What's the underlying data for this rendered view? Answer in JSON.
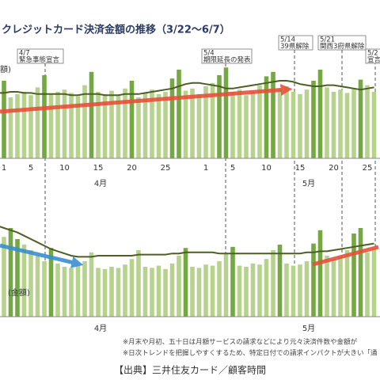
{
  "chart_data": [
    {
      "type": "bar",
      "title": "クレジットカード決済金額の推移（3/22～6/7）",
      "unit_label": "額)",
      "categories": [
        null,
        "1",
        null,
        null,
        null,
        "5",
        null,
        null,
        null,
        null,
        "10",
        null,
        null,
        null,
        null,
        "15",
        null,
        null,
        null,
        null,
        "20",
        null,
        null,
        null,
        null,
        "25",
        null,
        null,
        null,
        null,
        null,
        "1",
        null,
        null,
        null,
        "5",
        null,
        null,
        null,
        null,
        "10",
        null,
        null,
        null,
        null,
        "15",
        null,
        null,
        null,
        null,
        "20",
        null,
        null,
        null,
        null,
        "25",
        null
      ],
      "month_labels": [
        "4月",
        "5月"
      ],
      "values": [
        62,
        70,
        55,
        58,
        60,
        57,
        64,
        75,
        58,
        60,
        62,
        59,
        56,
        66,
        78,
        60,
        58,
        61,
        57,
        63,
        70,
        55,
        59,
        62,
        58,
        60,
        72,
        80,
        61,
        63,
        58,
        65,
        68,
        75,
        82,
        60,
        62,
        57,
        60,
        66,
        74,
        78,
        63,
        65,
        60,
        58,
        62,
        70,
        80,
        64,
        60,
        62,
        59,
        63,
        71,
        66,
        60
      ],
      "colors": [
        "#b7d28d",
        "#74a942",
        "#b7d28d",
        "#b7d28d",
        "#b7d28d",
        "#b7d28d",
        "#b7d28d",
        "#74a942",
        "#b7d28d",
        "#b7d28d",
        "#b7d28d",
        "#b7d28d",
        "#b7d28d",
        "#b7d28d",
        "#74a942",
        "#b7d28d",
        "#b7d28d",
        "#b7d28d",
        "#b7d28d",
        "#b7d28d",
        "#74a942",
        "#b7d28d",
        "#b7d28d",
        "#b7d28d",
        "#b7d28d",
        "#b7d28d",
        "#74a942",
        "#74a942",
        "#b7d28d",
        "#b7d28d",
        "#b7d28d",
        "#b7d28d",
        "#b7d28d",
        "#74a942",
        "#74a942",
        "#b7d28d",
        "#b7d28d",
        "#b7d28d",
        "#b7d28d",
        "#b7d28d",
        "#74a942",
        "#74a942",
        "#b7d28d",
        "#b7d28d",
        "#b7d28d",
        "#b7d28d",
        "#b7d28d",
        "#74a942",
        "#74a942",
        "#b7d28d",
        "#b7d28d",
        "#b7d28d",
        "#b7d28d",
        "#b7d28d",
        "#74a942",
        "#b7d28d",
        "#b7d28d"
      ],
      "trend": [
        59,
        59,
        60,
        60,
        59,
        59,
        58,
        58,
        58,
        58,
        58,
        57,
        57,
        58,
        58,
        58,
        57,
        57,
        57,
        58,
        58,
        58,
        59,
        60,
        61,
        62,
        63,
        65,
        67,
        68,
        68,
        67,
        66,
        65,
        63,
        63,
        64,
        65,
        66,
        67,
        68,
        69,
        70,
        70,
        69,
        67,
        66,
        65,
        65,
        66,
        66,
        65,
        64,
        63,
        62,
        63,
        64
      ],
      "trend_color": "#4d5f24",
      "ylim": [
        0,
        100
      ],
      "annotations": [
        {
          "date": "4/7",
          "text": "緊急事態宣言"
        },
        {
          "date": "5/4",
          "text": "期限延長の発表"
        },
        {
          "date": "5/14",
          "text": "39県解除"
        },
        {
          "date": "5/21",
          "text": "関西3府県解除"
        },
        {
          "date": "5/2",
          "text": "宣言"
        }
      ]
    },
    {
      "type": "bar",
      "unit_label": "(金額)",
      "month_labels": [
        "4月",
        "5月"
      ],
      "values": [
        78,
        72,
        80,
        70,
        65,
        60,
        55,
        50,
        62,
        48,
        45,
        44,
        46,
        50,
        58,
        44,
        43,
        45,
        44,
        47,
        52,
        60,
        45,
        44,
        46,
        43,
        48,
        55,
        62,
        45,
        44,
        47,
        46,
        50,
        57,
        63,
        46,
        45,
        48,
        47,
        52,
        60,
        65,
        48,
        46,
        47,
        50,
        66,
        78,
        55,
        52,
        54,
        60,
        75,
        80,
        58,
        62
      ],
      "colors": [
        "#74a942",
        "#b7d28d",
        "#74a942",
        "#74a942",
        "#b7d28d",
        "#b7d28d",
        "#b7d28d",
        "#b7d28d",
        "#74a942",
        "#b7d28d",
        "#b7d28d",
        "#b7d28d",
        "#b7d28d",
        "#b7d28d",
        "#b7d28d",
        "#b7d28d",
        "#b7d28d",
        "#b7d28d",
        "#b7d28d",
        "#b7d28d",
        "#b7d28d",
        "#b7d28d",
        "#b7d28d",
        "#b7d28d",
        "#b7d28d",
        "#b7d28d",
        "#b7d28d",
        "#b7d28d",
        "#74a942",
        "#b7d28d",
        "#b7d28d",
        "#b7d28d",
        "#b7d28d",
        "#b7d28d",
        "#b7d28d",
        "#74a942",
        "#b7d28d",
        "#b7d28d",
        "#b7d28d",
        "#b7d28d",
        "#b7d28d",
        "#b7d28d",
        "#74a942",
        "#b7d28d",
        "#b7d28d",
        "#b7d28d",
        "#b7d28d",
        "#74a942",
        "#74a942",
        "#b7d28d",
        "#b7d28d",
        "#b7d28d",
        "#b7d28d",
        "#74a942",
        "#74a942",
        "#b7d28d",
        "#b7d28d"
      ],
      "trend": [
        82,
        80,
        78,
        76,
        73,
        70,
        67,
        64,
        61,
        59,
        57,
        55,
        54,
        54,
        54,
        55,
        55,
        55,
        55,
        55,
        55,
        56,
        56,
        56,
        56,
        56,
        57,
        57,
        58,
        58,
        58,
        58,
        58,
        57,
        57,
        57,
        57,
        57,
        57,
        57,
        57,
        57,
        57,
        57,
        57,
        57,
        58,
        58,
        59,
        59,
        60,
        61,
        62,
        63,
        64,
        65,
        66
      ],
      "trend_color": "#4d5f24",
      "ylim": [
        0,
        100
      ]
    }
  ],
  "notes": [
    "※月末や月初、五十日は月額サービスの請求などにより元々決済件数や金額が",
    "※日次トレンドを把握しやすくするため、特定日付での請求インパクトが大きい「通"
  ],
  "source": "【出典】三井住友カード／顧客時間"
}
